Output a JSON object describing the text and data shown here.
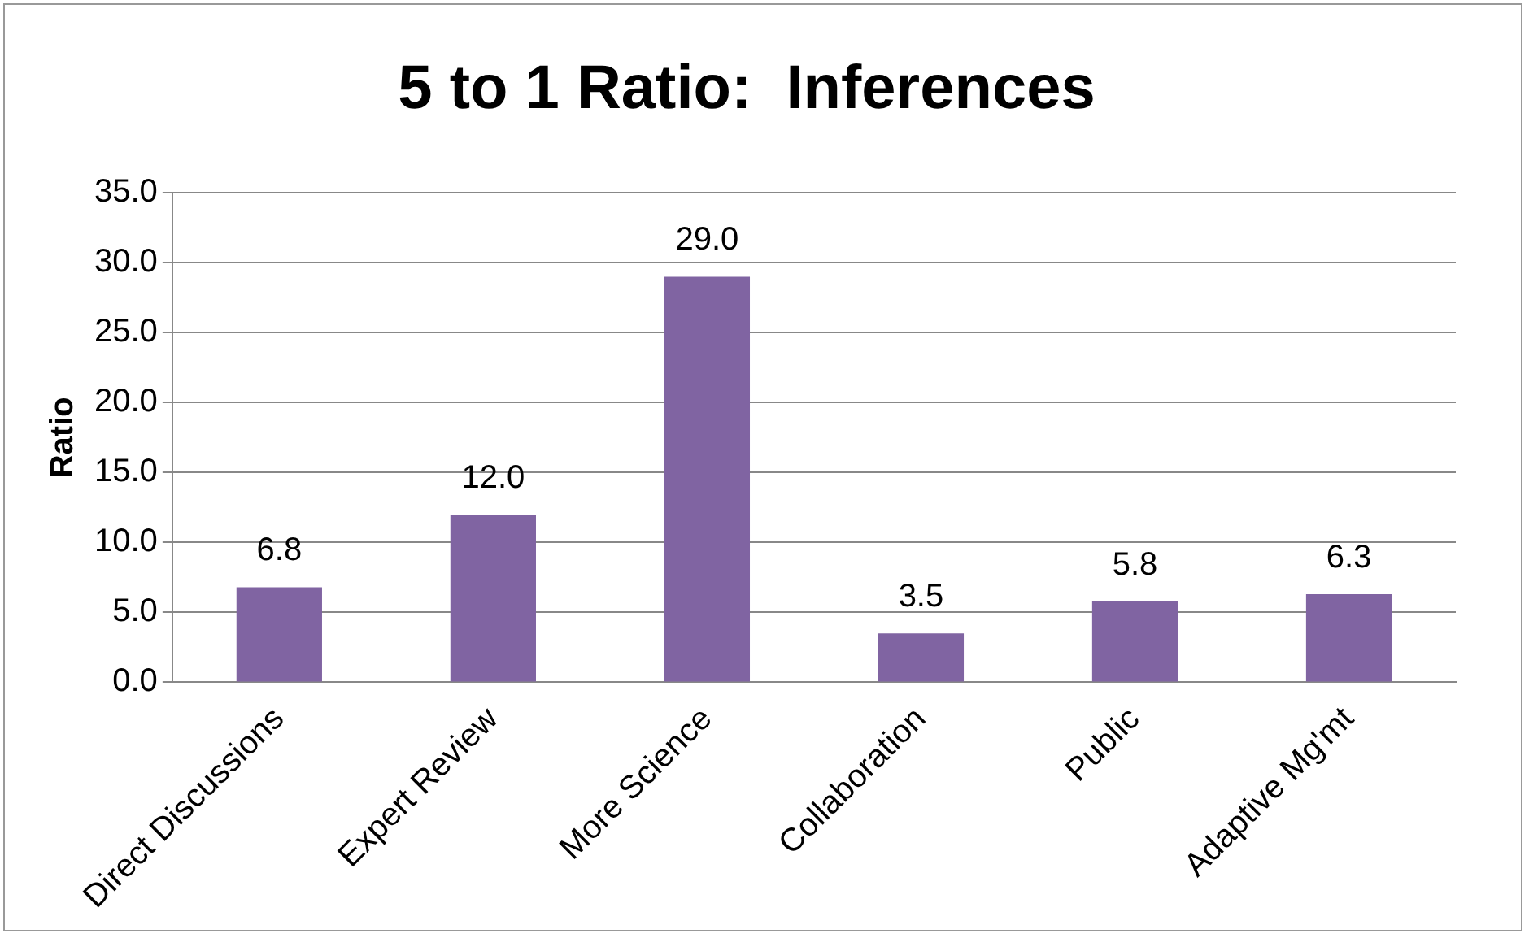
{
  "chart_data": {
    "type": "bar",
    "title": "5 to 1 Ratio:  Inferences",
    "ylabel": "Ratio",
    "categories": [
      "Direct Discussions",
      "Expert Review",
      "More Science",
      "Collaboration",
      "Public",
      "Adaptive Mg'mt"
    ],
    "values": [
      6.8,
      12.0,
      29.0,
      3.5,
      5.8,
      6.3
    ],
    "value_labels": [
      "6.8",
      "12.0",
      "29.0",
      "3.5",
      "5.8",
      "6.3"
    ],
    "color": "#8064a2",
    "ylim": [
      0,
      35
    ],
    "yticks": [
      {
        "value": 0,
        "label": "0.0"
      },
      {
        "value": 5,
        "label": "5.0"
      },
      {
        "value": 10,
        "label": "10.0"
      },
      {
        "value": 15,
        "label": "15.0"
      },
      {
        "value": 20,
        "label": "20.0"
      },
      {
        "value": 25,
        "label": "25.0"
      },
      {
        "value": 30,
        "label": "30.0"
      },
      {
        "value": 35,
        "label": "35.0"
      }
    ],
    "grid": "y",
    "legend": false
  }
}
